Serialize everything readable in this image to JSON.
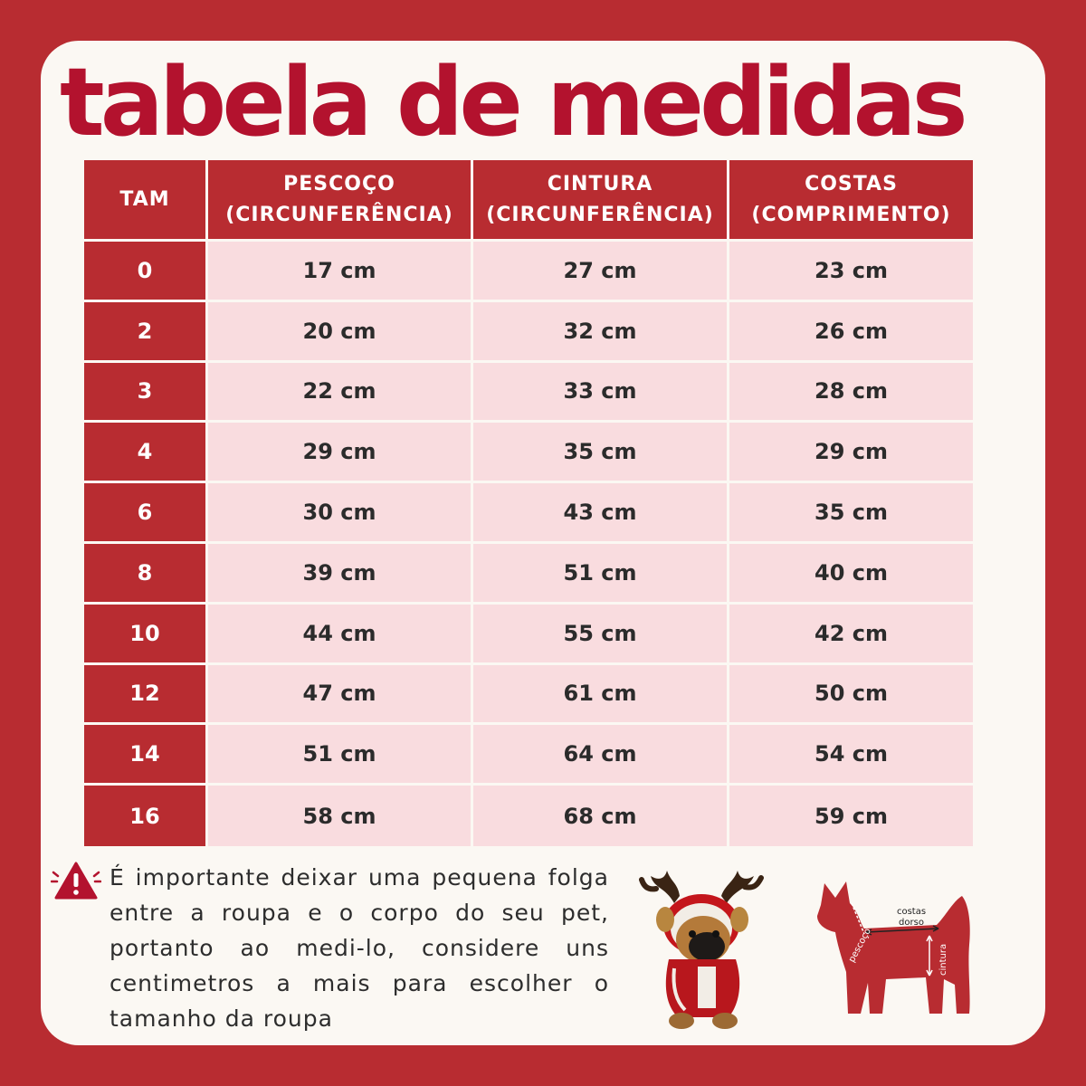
{
  "title": "tabela de medidas",
  "table": {
    "headers": {
      "tam": "TAM",
      "pescoco_line1": "PESCOÇO",
      "pescoco_line2": "(CIRCUNFERÊNCIA)",
      "cintura_line1": "CINTURA",
      "cintura_line2": "(CIRCUNFERÊNCIA)",
      "costas_line1": "COSTAS",
      "costas_line2": "(COMPRIMENTO)"
    },
    "rows": [
      {
        "tam": "0",
        "pescoco": "17 cm",
        "cintura": "27 cm",
        "costas": "23 cm"
      },
      {
        "tam": "2",
        "pescoco": "20 cm",
        "cintura": "32 cm",
        "costas": "26 cm"
      },
      {
        "tam": "3",
        "pescoco": "22 cm",
        "cintura": "33 cm",
        "costas": "28 cm"
      },
      {
        "tam": "4",
        "pescoco": "29 cm",
        "cintura": "35 cm",
        "costas": "29 cm"
      },
      {
        "tam": "6",
        "pescoco": "30 cm",
        "cintura": "43 cm",
        "costas": "35 cm"
      },
      {
        "tam": "8",
        "pescoco": "39 cm",
        "cintura": "51 cm",
        "costas": "40 cm"
      },
      {
        "tam": "10",
        "pescoco": "44 cm",
        "cintura": "55 cm",
        "costas": "42 cm"
      },
      {
        "tam": "12",
        "pescoco": "47 cm",
        "cintura": "61 cm",
        "costas": "50 cm"
      },
      {
        "tam": "14",
        "pescoco": "51 cm",
        "cintura": "64 cm",
        "costas": "54 cm"
      },
      {
        "tam": "16",
        "pescoco": "58 cm",
        "cintura": "68 cm",
        "costas": "59 cm"
      }
    ]
  },
  "note": "É importante deixar uma pequena folga entre a roupa e o corpo do seu pet, portanto ao medi-lo, considere  uns centimetros a mais para escolher o tamanho da roupa",
  "diagram": {
    "back_label_1": "costas",
    "back_label_2": "dorso",
    "neck_label": "pescoço",
    "waist_label": "cintura"
  },
  "icons": {
    "warning": "warning-triangle-icon",
    "plush": "reindeer-plush-dog-photo",
    "dog": "dog-measurement-silhouette"
  },
  "colors": {
    "background": "#b82c31",
    "title": "#b3122e",
    "header": "#b82c31",
    "cell": "#f9dcdf",
    "card": "#fbf8f3"
  }
}
